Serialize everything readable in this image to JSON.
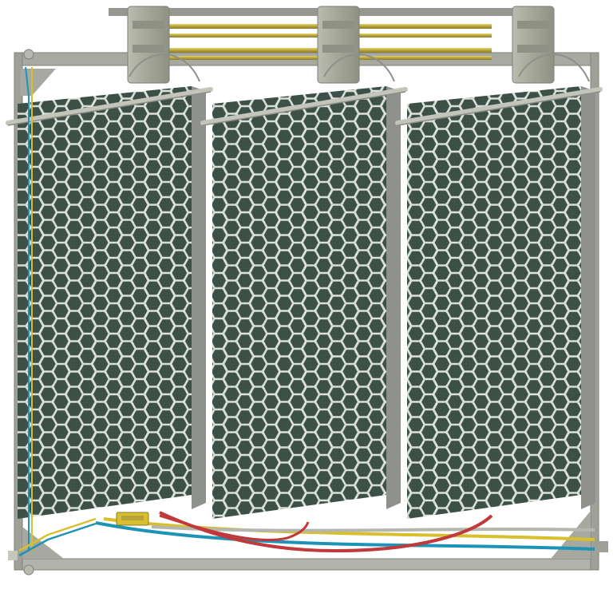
{
  "scene": {
    "panel_count": 3,
    "colors": {
      "background": "#ffffff",
      "frame": "#a8a9a0",
      "frame_dark": "#7f807a",
      "clamp": "#a7aa9b",
      "rod_gold": "#c8b84a",
      "panel_cell": "#3c4f47",
      "panel_edge": "#c9d0c8",
      "panel_side": "#8f928c",
      "wire_red": "#c0393b",
      "wire_yellow": "#d8bf2e",
      "wire_blue": "#1e93b8",
      "wire_gray": "#b4b6b0"
    },
    "icons": [
      "hex-cell-icon",
      "clamp-icon",
      "connector-icon"
    ]
  }
}
